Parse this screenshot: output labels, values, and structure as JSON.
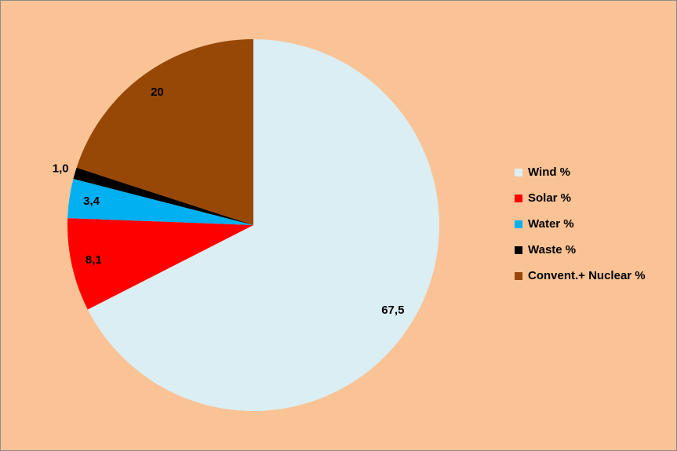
{
  "chart_data": {
    "type": "pie",
    "categories": [
      "Wind %",
      "Solar %",
      "Water %",
      "Waste %",
      "Convent.+ Nuclear %"
    ],
    "values": [
      67.5,
      8.1,
      3.4,
      1.0,
      20
    ],
    "value_labels": [
      "67,5",
      "8,1",
      "3,4",
      "1,0",
      "20"
    ],
    "colors": [
      "#DAEEF3",
      "#FF0000",
      "#00B0F0",
      "#000000",
      "#974706"
    ],
    "legend": "right"
  }
}
